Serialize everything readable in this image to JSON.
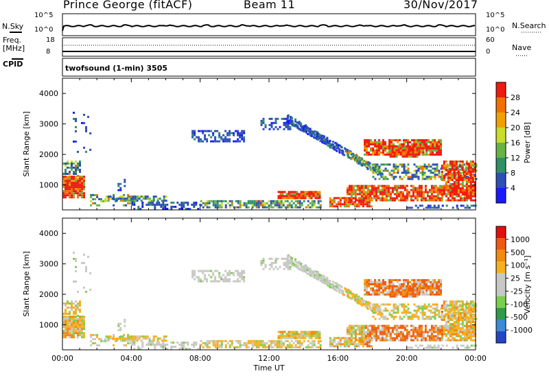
{
  "header": {
    "station": "Prince George (fitACF)",
    "beam": "Beam 11",
    "date": "30/Nov/2017"
  },
  "noise_panel": {
    "left_label": "N.Sky",
    "left_ticks": [
      "10^5",
      "10^0"
    ],
    "right_ticks": [
      "10^5",
      "10^0"
    ],
    "right_label": "N.Search"
  },
  "freq_panel": {
    "left_label_1": "Freq.",
    "left_label_2": "[MHz]",
    "left_ticks": [
      "18",
      "8"
    ],
    "right_ticks": [
      "60",
      "0"
    ],
    "right_label": "Nave"
  },
  "cpid_panel": {
    "left_label": "CPID",
    "program": "twofsound (1-min) 3505"
  },
  "chart_data": [
    {
      "type": "heatmap",
      "title": "",
      "ylabel": "Slant Range [km]",
      "yticks": [
        "4000",
        "3000",
        "2000",
        "1000"
      ],
      "ylim": [
        180,
        4500
      ],
      "xlim": [
        0,
        24
      ],
      "colorbar_label": "Power [dB]",
      "colorbar_ticks": [
        "28",
        "24",
        "20",
        "16",
        "12",
        "8",
        "4"
      ],
      "colorbar_colors": [
        "#1a1aff",
        "#2e4fb5",
        "#2f8f66",
        "#67b343",
        "#c8dc28",
        "#f0a000",
        "#f07000",
        "#ee1a10"
      ]
    },
    {
      "type": "heatmap",
      "title": "",
      "ylabel": "Slant Range [km]",
      "yticks": [
        "4000",
        "3000",
        "2000",
        "1000"
      ],
      "ylim": [
        180,
        4500
      ],
      "xlim": [
        0,
        24
      ],
      "xlabel": "Time UT",
      "xticks": [
        "00:00",
        "04:00",
        "08:00",
        "12:00",
        "16:00",
        "20:00",
        "00:00"
      ],
      "colorbar_label": "Velocity [m s⁻¹]",
      "colorbar_ticks": [
        "1000",
        "500",
        "100",
        "25",
        "-25",
        "-100",
        "-500",
        "-1000"
      ],
      "colorbar_colors": [
        "#2147c6",
        "#3d8ad6",
        "#2e9c4a",
        "#7ad04d",
        "#c8c8c4",
        "#c8c8c4",
        "#f5b020",
        "#f08a10",
        "#ee5a10",
        "#e01010"
      ]
    }
  ]
}
